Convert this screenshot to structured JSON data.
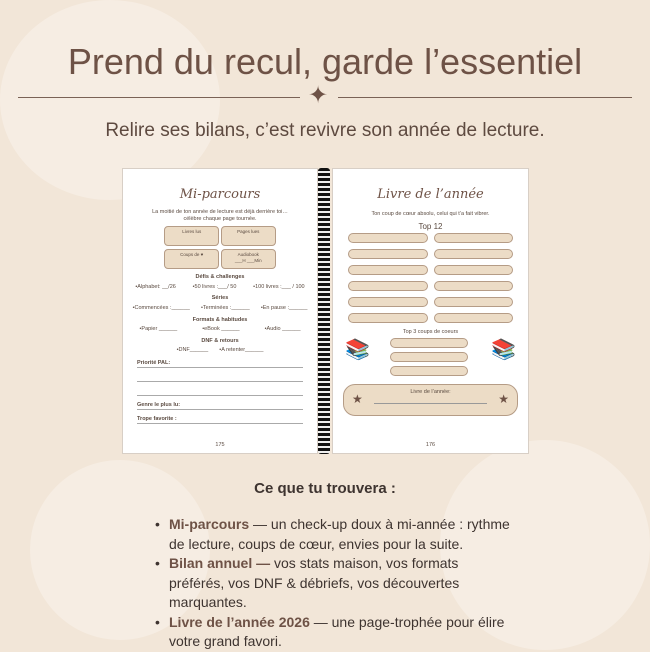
{
  "title": "Prend du recul, garde l’essentiel",
  "subtitle": "Relire ses bilans, c’est revivre son année de lecture.",
  "left_page": {
    "title": "Mi-parcours",
    "intro": "La moitié de ton année de lecture est déjà derrière toi… célèbre chaque page tournée.",
    "boxes": [
      "Livres lus",
      "Pages lues",
      "Coups de ♥",
      "Audiobook"
    ],
    "audio_fill": "___H ___Min",
    "defis_title": "Défis & challenges",
    "defis": [
      "•Alphabet: __/26",
      "•50 livres :___/ 50",
      "•100 livres :___ / 100"
    ],
    "series_title": "Séries",
    "series": [
      "•Commencées :______",
      "•Terminées :______",
      "•En pause :______"
    ],
    "formats_title": "Formats & habitudes",
    "formats": [
      "•Papier ______",
      "•eBook ______",
      "•Audio ______"
    ],
    "dnf_title": "DNF & retours",
    "dnf": [
      "•DNF______",
      "•A retenter______"
    ],
    "pal": "Priorité PAL:",
    "genre": "Genre le plus lu:",
    "trope": "Trope favorite :",
    "page_number": "175"
  },
  "right_page": {
    "title": "Livre de l’année",
    "intro": "Ton coup de cœur absolu, celui qui t’a fait vibrer.",
    "top12": "Top 12",
    "top3": "Top 3 coups de coeurs",
    "book_of_year": "Livre de l’année:",
    "page_number": "176"
  },
  "section_heading": "Ce que tu trouvera :",
  "bullets": [
    {
      "bold": "Mi-parcours",
      "text": " — un check-up doux à mi-année : rythme de lecture, coups de cœur, envies pour la suite."
    },
    {
      "bold": "Bilan annuel —",
      "text": " vos stats maison, vos formats préférés, vos DNF & débriefs, vos découvertes marquantes."
    },
    {
      "bold": "Livre de l’année 2026",
      "text": " — une page-trophée pour élire votre grand favori."
    }
  ],
  "colors": {
    "background": "#f2e6d8",
    "accent": "#6e5246",
    "pill": "#ecdcc6"
  }
}
